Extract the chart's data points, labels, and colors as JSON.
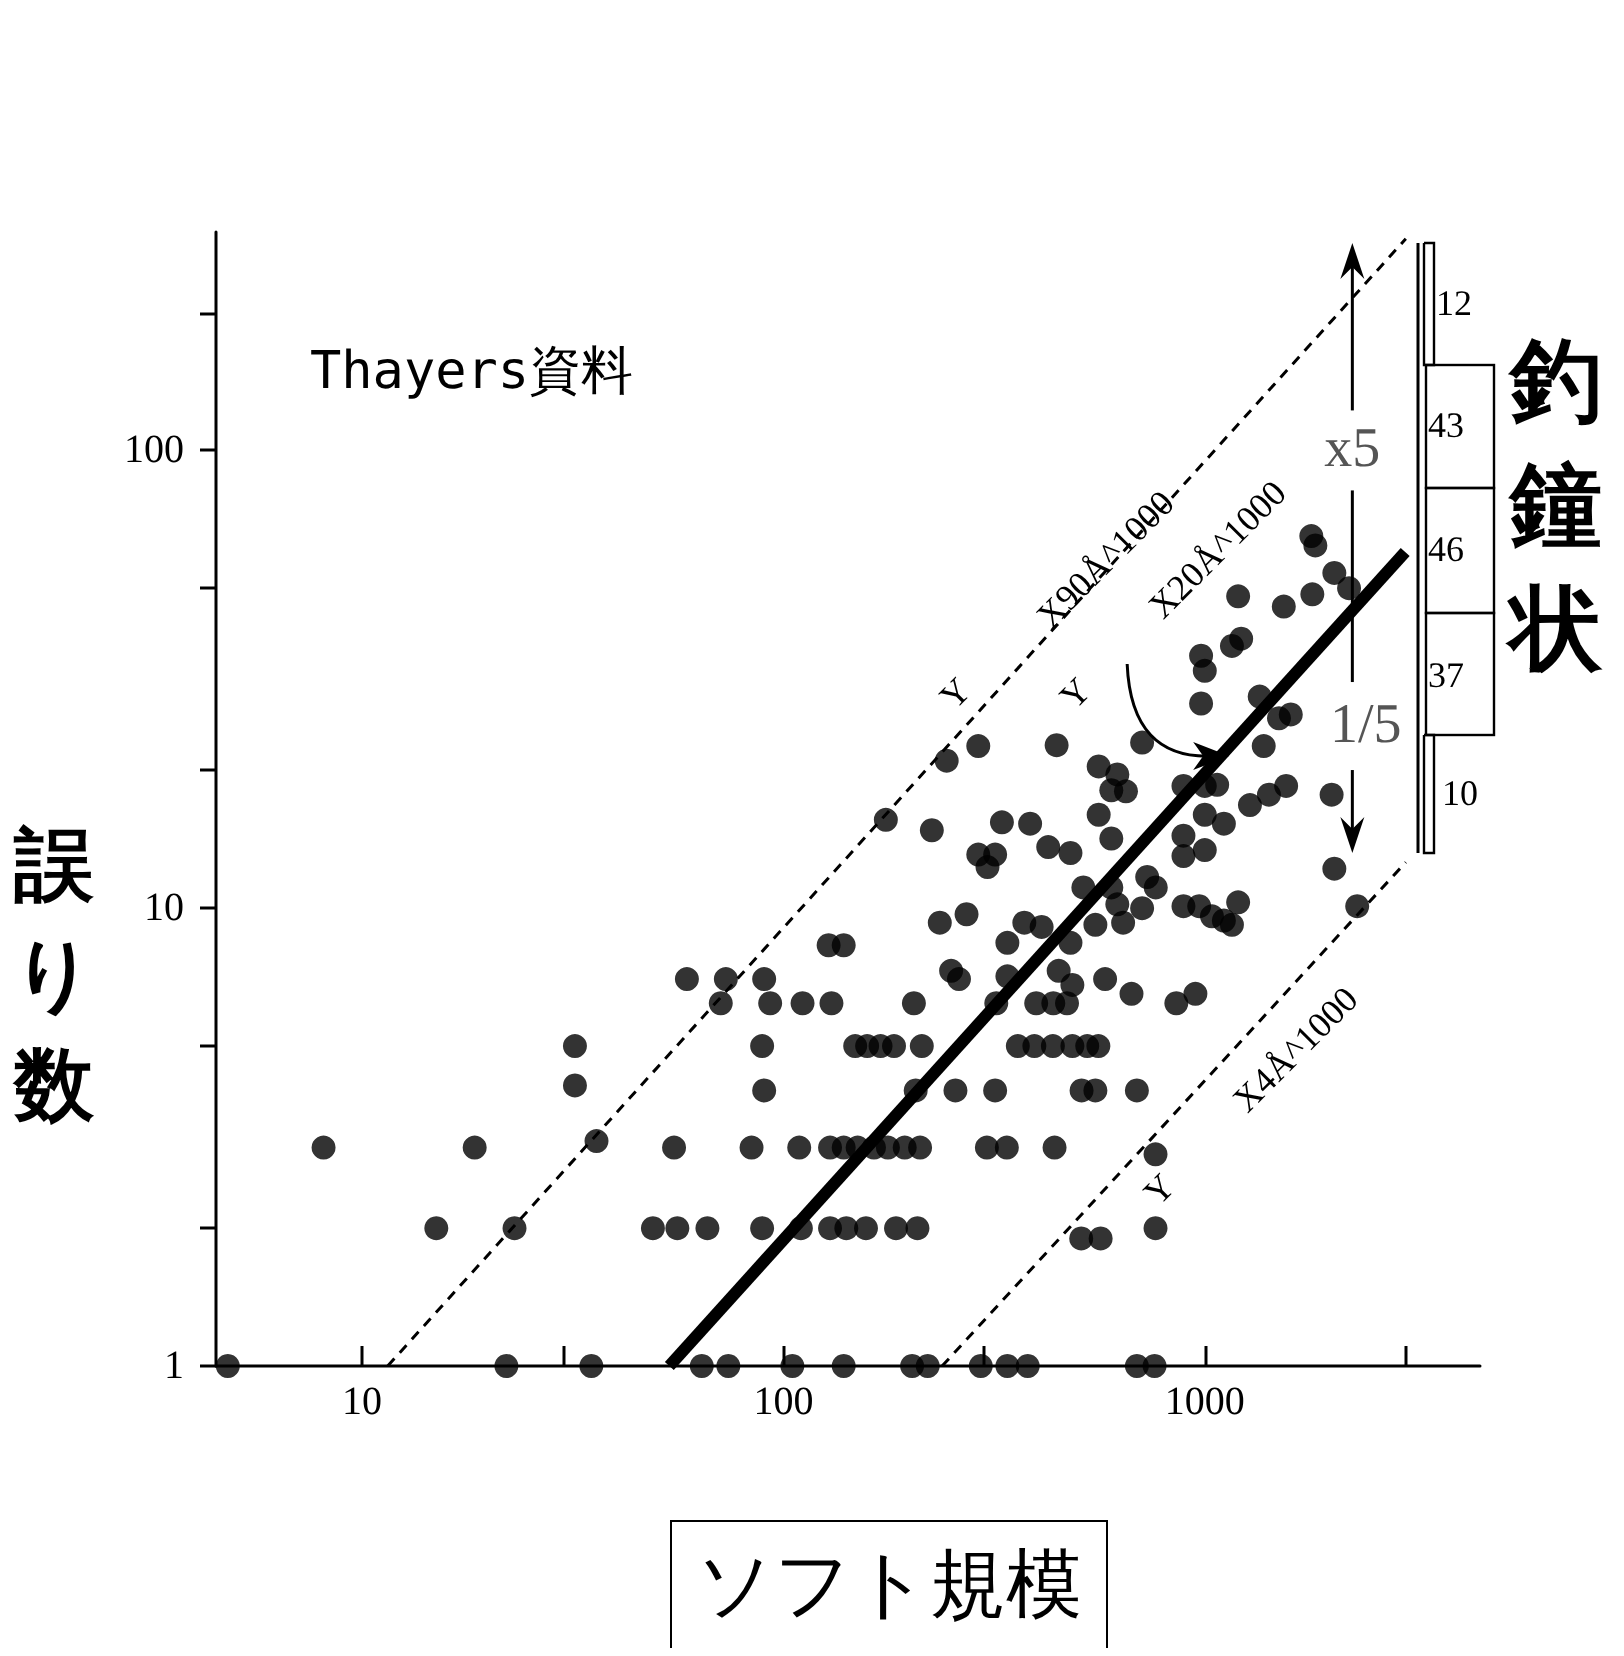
{
  "chart_data": {
    "type": "scatter",
    "xlabel": "ソフト規模",
    "ylabel": "誤り数",
    "log": "xy",
    "xlim": [
      4.5,
      4500
    ],
    "ylim": [
      1,
      300
    ],
    "xticks": [
      10,
      {
        "value": 30,
        "label": null
      },
      100,
      {
        "value": 300,
        "label": null
      },
      1000,
      {
        "value": 3000,
        "label": null
      }
    ],
    "yticks": [
      1,
      {
        "value": 2,
        "label": null
      },
      {
        "value": 5,
        "label": null
      },
      10,
      {
        "value": 20,
        "label": null
      },
      {
        "value": 50,
        "label": null
      },
      100,
      {
        "value": 200,
        "label": null
      }
    ],
    "grid": false,
    "marker": "circle",
    "series": [
      {
        "type": "line",
        "color": "#000000",
        "marker": "none",
        "line_style": "dashed",
        "x": [
          11.5,
          3000
        ],
        "values": [
          1,
          290
        ]
      },
      {
        "type": "line",
        "color": "#000000",
        "marker": "none",
        "line_style": "dashed",
        "x": [
          238,
          3000
        ],
        "values": [
          1,
          12.6
        ]
      },
      {
        "type": "line",
        "color": "#000000",
        "marker": "none",
        "line_style": "solid",
        "x": [
          53.6,
          2990
        ],
        "values": [
          1,
          60
        ]
      },
      {
        "type": "scatter",
        "color": "#000000",
        "x": [
          4.8,
          8.1,
          15,
          18.5,
          23,
          22,
          32,
          32,
          36,
          35,
          49,
          56,
          66,
          55,
          59,
          71,
          73,
          64,
          74,
          84,
          109,
          129,
          139,
          150,
          164,
          177,
          194,
          211,
          304,
          339,
          440,
          89,
          110,
          129,
          141,
          157,
          185,
          208,
          509,
          566,
          764,
          764,
          105,
          139,
          202,
          220,
          294,
          340,
          380,
          690,
          760,
          90,
          206,
          256,
          318,
          510,
          550,
          690,
          89,
          148,
          158,
          170,
          183,
          213,
          360,
          394,
          436,
          485,
          526,
          559,
          93,
          111,
          130,
          204,
          320,
          398,
          437,
          471,
          856,
          950,
          670,
          580,
          450,
          485,
          90,
          250,
          261,
          340,
          128,
          139,
          340,
          480,
          290,
          244,
          175,
          225,
          330,
          385,
          290,
          318,
          305,
          425,
          480,
          235,
          272,
          373,
          410,
          445,
          710,
          560,
          620,
          600,
          650,
          560,
          600,
          515,
          600,
          730,
          765,
          550,
          640,
          620,
          710,
          890,
          970,
          1040,
          1160,
          1200,
          890,
          890,
          1000,
          1110,
          1000,
          890,
          1000,
          1070,
          980,
          1000,
          1160,
          1220,
          980,
          1200,
          1350,
          1380,
          1280,
          1420,
          1790,
          1830,
          2030,
          2200,
          1800,
          1540,
          1500,
          1600,
          1560,
          2000,
          2030,
          1110,
          2300
        ],
        "values": [
          1,
          3,
          2,
          3,
          2,
          1,
          5,
          4.1,
          3.1,
          1,
          2,
          2,
          2,
          3,
          7,
          6.2,
          7,
          1,
          1,
          3,
          3,
          3,
          3,
          3,
          3,
          3,
          3,
          3,
          3,
          3,
          3,
          2,
          2,
          2,
          2,
          2,
          2,
          2,
          1.9,
          1.9,
          2,
          2.9,
          1,
          1,
          1,
          1,
          1,
          1,
          1,
          1,
          1,
          4,
          4,
          4,
          4,
          4,
          4,
          4,
          5,
          5,
          5,
          5,
          5,
          5,
          5,
          5,
          5,
          5,
          5,
          5,
          6.2,
          6.2,
          6.2,
          6.2,
          6.2,
          6.2,
          6.2,
          6.2,
          6.2,
          6.5,
          6.5,
          7,
          7.3,
          6.8,
          7,
          7.3,
          7,
          7.1,
          8.3,
          8.3,
          8.4,
          8.4,
          22.6,
          21,
          15.6,
          14.8,
          15.4,
          15.3,
          13.1,
          13.1,
          12.3,
          13.6,
          13.2,
          9.3,
          9.7,
          9.3,
          9.1,
          22.7,
          23,
          20.4,
          19.6,
          18.1,
          18,
          16,
          14.2,
          11.1,
          11.1,
          11.7,
          11.1,
          9.2,
          9.3,
          10.2,
          10,
          10.1,
          10.1,
          9.6,
          9.2,
          10.3,
          14.4,
          13,
          13.4,
          15.3,
          16,
          18.5,
          18.5,
          18.6,
          35.6,
          33,
          37.4,
          38.8,
          28,
          48,
          29,
          22.6,
          16.8,
          17.7,
          65,
          62,
          54,
          50,
          48.5,
          45.6,
          26,
          26.5,
          18.5,
          17.7,
          12.2,
          9.4,
          10.1
        ]
      }
    ],
    "annotations": [
      "Thayers資料",
      "釣鐘状",
      {
        "text": "X90Å^1000",
        "x": 580,
        "y": 57.5
      },
      {
        "text": "X20Å^1000",
        "x": 1070,
        "y": 21.5
      },
      "X4Å^1000",
      "Y",
      "Y",
      "Y",
      {
        "text": "x5",
        "x": 2240,
        "y": 100
      },
      {
        "text": "1/5",
        "x": 2410,
        "y": 25
      },
      "12",
      "43",
      "46",
      "37",
      "10"
    ]
  }
}
